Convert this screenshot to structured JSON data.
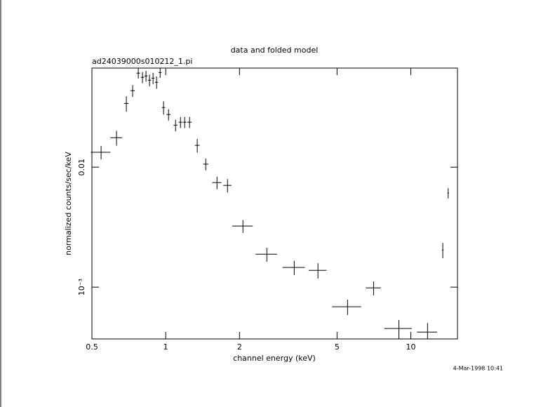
{
  "chart_data": {
    "type": "scatter",
    "title": "data and folded model",
    "subtitle": "ad24039000s010212_1.pi",
    "x_label": "channel energy (keV)",
    "y_label": "normalized counts/sec/keV",
    "annotation": "4-Mar-1998 10:41",
    "x": [
      0.545,
      0.63,
      0.691,
      0.733,
      0.773,
      0.804,
      0.831,
      0.859,
      0.888,
      0.918,
      0.949,
      0.98,
      1.027,
      1.097,
      1.149,
      1.195,
      1.251,
      1.345,
      1.457,
      1.619,
      1.787,
      2.066,
      2.586,
      3.345,
      4.18,
      5.52,
      7.05,
      8.94,
      11.7,
      13.5,
      14.2
    ],
    "xerr": [
      0.05,
      0.035,
      0.015,
      0.015,
      0.013,
      0.013,
      0.013,
      0.013,
      0.013,
      0.013,
      0.013,
      0.015,
      0.02,
      0.02,
      0.02,
      0.02,
      0.025,
      0.03,
      0.035,
      0.07,
      0.07,
      0.2,
      0.26,
      0.35,
      0.35,
      0.75,
      0.5,
      1.15,
      1.1,
      0.1,
      0.1
    ],
    "values": [
      0.0133,
      0.0176,
      0.034,
      0.0434,
      0.0608,
      0.0561,
      0.0576,
      0.0531,
      0.0552,
      0.051,
      0.0615,
      0.0314,
      0.0275,
      0.0224,
      0.0237,
      0.0237,
      0.0237,
      0.0152,
      0.0106,
      0.00744,
      0.00705,
      0.00323,
      0.00188,
      0.00146,
      0.00138,
      0.000686,
      0.000986,
      0.000452,
      0.000422,
      0.00204,
      0.00608
    ],
    "yerr": [
      0.0017,
      0.0025,
      0.005,
      0.005,
      0.006,
      0.006,
      0.006,
      0.006,
      0.006,
      0.006,
      0.006,
      0.004,
      0.003,
      0.0025,
      0.0025,
      0.0025,
      0.0025,
      0.002,
      0.0012,
      0.0009,
      0.0009,
      0.0004,
      0.00025,
      0.0002,
      0.0002,
      0.0001,
      0.00013,
      8e-05,
      8e-05,
      0.0003,
      0.0006
    ],
    "color": "#000000",
    "xscale": "log",
    "yscale": "log",
    "xlim": [
      0.5,
      15.5
    ],
    "ylim": [
      0.00037,
      0.067
    ],
    "xticks": [
      0.5,
      1,
      2,
      5,
      10
    ],
    "yticks": [
      {
        "value": 0.001,
        "label": "10⁻³"
      },
      0.01
    ]
  }
}
